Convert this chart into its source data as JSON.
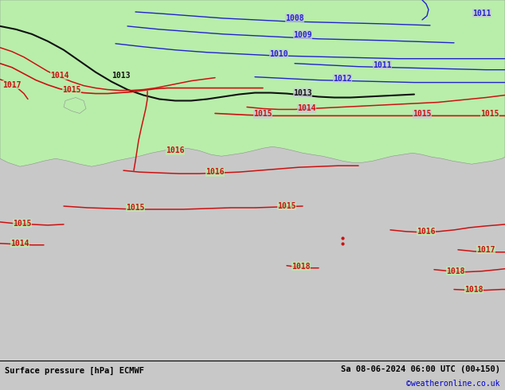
{
  "title_left": "Surface pressure [hPa] ECMWF",
  "title_right": "Sa 08-06-2024 06:00 UTC (00+150)",
  "copyright": "©weatheronline.co.uk",
  "bg_color": "#c8c8c8",
  "land_color": "#b8eeaa",
  "sea_color": "#c8c8d8",
  "border_color": "#909090",
  "blue_color": "#2222cc",
  "black_color": "#111111",
  "red_color": "#cc1111",
  "bar_color": "#e0e0e0",
  "figsize": [
    6.34,
    4.9
  ],
  "dpi": 100
}
